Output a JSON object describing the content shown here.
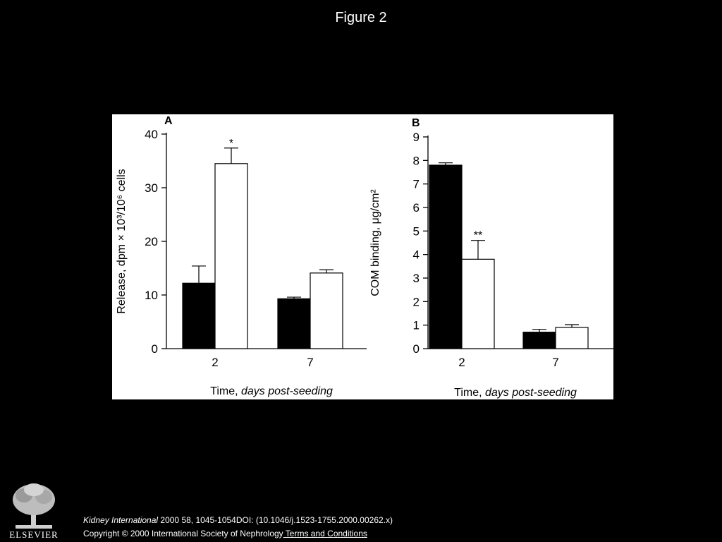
{
  "slide": {
    "title": "Figure 2"
  },
  "chart_data": [
    {
      "type": "bar",
      "panel_label": "A",
      "ylabel": "Release, dpm × 10³/10⁶ cells",
      "xlabel_plain": "Time, ",
      "xlabel_italic": "days post-seeding",
      "categories": [
        "2",
        "7"
      ],
      "ylim": [
        0,
        40
      ],
      "yticks": [
        0,
        10,
        20,
        30,
        40
      ],
      "series": [
        {
          "color": "#000000",
          "values": [
            12.2,
            9.3
          ],
          "errors": [
            3.2,
            0.3
          ]
        },
        {
          "color": "#ffffff",
          "values": [
            34.5,
            14.1
          ],
          "errors": [
            2.9,
            0.6
          ]
        }
      ],
      "annotations": [
        {
          "text": "*",
          "category": "2",
          "series_index": 1
        }
      ]
    },
    {
      "type": "bar",
      "panel_label": "B",
      "ylabel": "COM binding, μg/cm²",
      "xlabel_plain": "Time, ",
      "xlabel_italic": "days post-seeding",
      "categories": [
        "2",
        "7"
      ],
      "ylim": [
        0,
        9
      ],
      "yticks": [
        0,
        1,
        2,
        3,
        4,
        5,
        6,
        7,
        8,
        9
      ],
      "series": [
        {
          "color": "#000000",
          "values": [
            7.8,
            0.7
          ],
          "errors": [
            0.1,
            0.12
          ]
        },
        {
          "color": "#ffffff",
          "values": [
            3.8,
            0.9
          ],
          "errors": [
            0.8,
            0.12
          ]
        }
      ],
      "annotations": [
        {
          "text": "**",
          "category": "2",
          "series_index": 1
        }
      ]
    }
  ],
  "footer": {
    "logo_text": "ELSEVIER",
    "journal": "Kidney International",
    "citation_rest": " 2000 58, 1045-1054DOI: (10.1046/j.1523-1755.2000.00262.x)",
    "copyright": "Copyright © 2000 International Society of Nephrology",
    "terms_link": " Terms and Conditions"
  }
}
